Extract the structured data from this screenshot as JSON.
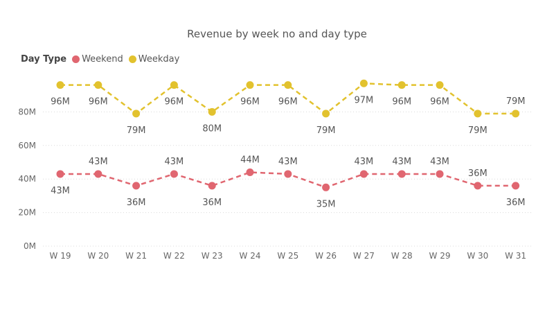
{
  "chart_data": {
    "type": "line",
    "title": "Revenue by week no and day type",
    "legend_title": "Day Type",
    "legend_position": "top-left",
    "categories": [
      "W 19",
      "W 20",
      "W 21",
      "W 22",
      "W 23",
      "W 24",
      "W 25",
      "W 26",
      "W 27",
      "W 28",
      "W 29",
      "W 30",
      "W 31"
    ],
    "y_ticks": [
      "0M",
      "20M",
      "40M",
      "60M",
      "80M"
    ],
    "ylim": [
      0,
      100
    ],
    "grid": true,
    "series": [
      {
        "name": "Weekend",
        "color": "#E06670",
        "values": [
          43,
          43,
          36,
          43,
          36,
          44,
          43,
          35,
          43,
          43,
          43,
          36,
          36
        ],
        "labels": [
          "43M",
          "43M",
          "36M",
          "43M",
          "36M",
          "44M",
          "43M",
          "35M",
          "43M",
          "43M",
          "43M",
          "36M",
          "36M"
        ],
        "label_positions": [
          "below",
          "above",
          "below",
          "above",
          "below",
          "above",
          "above",
          "below",
          "above",
          "above",
          "above",
          "above",
          "below"
        ]
      },
      {
        "name": "Weekday",
        "color": "#E2C22E",
        "values": [
          96,
          96,
          79,
          96,
          80,
          96,
          96,
          79,
          97,
          96,
          96,
          79,
          79
        ],
        "labels": [
          "96M",
          "96M",
          "79M",
          "96M",
          "80M",
          "96M",
          "96M",
          "79M",
          "97M",
          "96M",
          "96M",
          "79M",
          "79M"
        ],
        "label_positions": [
          "below",
          "below",
          "below",
          "below",
          "below",
          "below",
          "below",
          "below",
          "below",
          "below",
          "below",
          "below",
          "above"
        ]
      }
    ]
  }
}
